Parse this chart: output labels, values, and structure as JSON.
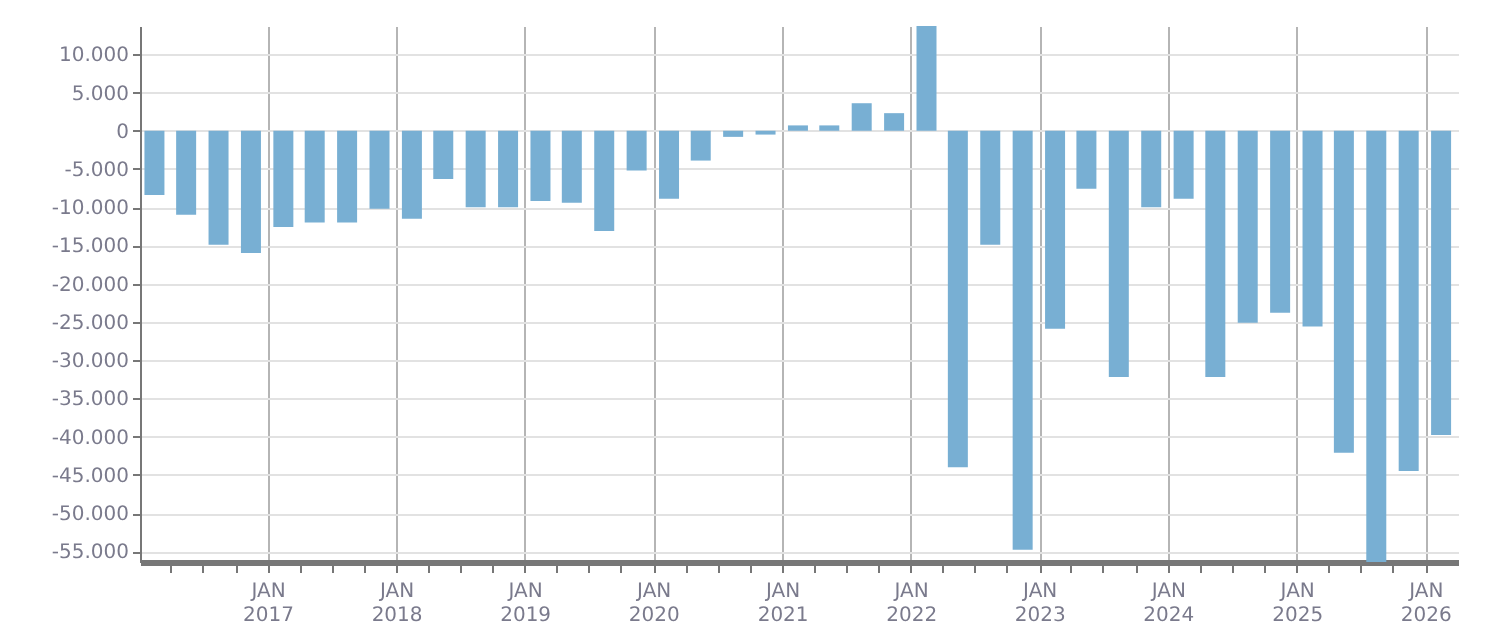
{
  "chart_data": {
    "type": "bar",
    "color": "#78afd3",
    "x": [
      "2016-02-15",
      "2016-05-15",
      "2016-08-15",
      "2016-11-15",
      "2017-02-15",
      "2017-05-15",
      "2017-08-15",
      "2017-11-15",
      "2018-02-15",
      "2018-05-15",
      "2018-08-15",
      "2018-11-15",
      "2019-02-15",
      "2019-05-15",
      "2019-08-15",
      "2019-11-15",
      "2020-02-15",
      "2020-05-15",
      "2020-08-15",
      "2020-11-15",
      "2021-02-15",
      "2021-05-15",
      "2021-08-15",
      "2021-11-15",
      "2022-02-15",
      "2022-05-15",
      "2022-08-15",
      "2022-11-15",
      "2023-02-15",
      "2023-05-15",
      "2023-08-15",
      "2023-11-15",
      "2024-02-15",
      "2024-05-15",
      "2024-08-15",
      "2024-11-15",
      "2025-02-15",
      "2025-05-15",
      "2025-08-15",
      "2025-11-15",
      "2026-02-15"
    ],
    "values": [
      -8400,
      -11000,
      -14900,
      -16000,
      -12600,
      -12000,
      -12000,
      -10200,
      -11500,
      -6300,
      -10000,
      -10000,
      -9200,
      -9400,
      -13100,
      -5200,
      -8900,
      -3900,
      -800,
      -500,
      700,
      700,
      3600,
      2300,
      13700,
      -44000,
      -14900,
      -54800,
      -25900,
      -7600,
      -32200,
      -10000,
      -8900,
      -32200,
      -25100,
      -23800,
      -25600,
      -42100,
      -56400,
      -44500,
      -39800
    ],
    "xlim": [
      "2016-01-05",
      "2026-04-04"
    ],
    "xticks": [
      {
        "value": "2016-04-01",
        "label": null
      },
      {
        "value": "2016-07-01",
        "label": null
      },
      {
        "value": "2016-10-01",
        "label": null
      },
      {
        "value": "2017-01-01",
        "label": "JAN 2017"
      },
      {
        "value": "2017-04-01",
        "label": null
      },
      {
        "value": "2017-07-01",
        "label": null
      },
      {
        "value": "2017-10-01",
        "label": null
      },
      {
        "value": "2018-01-01",
        "label": "JAN 2018"
      },
      {
        "value": "2018-04-01",
        "label": null
      },
      {
        "value": "2018-07-01",
        "label": null
      },
      {
        "value": "2018-10-01",
        "label": null
      },
      {
        "value": "2019-01-01",
        "label": "JAN 2019"
      },
      {
        "value": "2019-04-01",
        "label": null
      },
      {
        "value": "2019-07-01",
        "label": null
      },
      {
        "value": "2019-10-01",
        "label": null
      },
      {
        "value": "2020-01-01",
        "label": "JAN 2020"
      },
      {
        "value": "2020-04-01",
        "label": null
      },
      {
        "value": "2020-07-01",
        "label": null
      },
      {
        "value": "2020-10-01",
        "label": null
      },
      {
        "value": "2021-01-01",
        "label": "JAN 2021"
      },
      {
        "value": "2021-04-01",
        "label": null
      },
      {
        "value": "2021-07-01",
        "label": null
      },
      {
        "value": "2021-10-01",
        "label": null
      },
      {
        "value": "2022-01-01",
        "label": "JAN 2022"
      },
      {
        "value": "2022-04-01",
        "label": null
      },
      {
        "value": "2022-07-01",
        "label": null
      },
      {
        "value": "2022-10-01",
        "label": null
      },
      {
        "value": "2023-01-01",
        "label": "JAN 2023"
      },
      {
        "value": "2023-04-01",
        "label": null
      },
      {
        "value": "2023-07-01",
        "label": null
      },
      {
        "value": "2023-10-01",
        "label": null
      },
      {
        "value": "2024-01-01",
        "label": "JAN 2024"
      },
      {
        "value": "2024-04-01",
        "label": null
      },
      {
        "value": "2024-07-01",
        "label": null
      },
      {
        "value": "2024-10-01",
        "label": null
      },
      {
        "value": "2025-01-01",
        "label": "JAN 2025"
      },
      {
        "value": "2025-04-01",
        "label": null
      },
      {
        "value": "2025-07-01",
        "label": null
      },
      {
        "value": "2025-10-01",
        "label": null
      },
      {
        "value": "2026-01-01",
        "label": "JAN 2026"
      }
    ],
    "ylim": [
      -56400,
      13700
    ],
    "yticks": [
      {
        "value": 10000,
        "label": "10.000"
      },
      {
        "value": 5000,
        "label": "5.000"
      },
      0,
      {
        "value": -5000,
        "label": "-5.000"
      },
      {
        "value": -10000,
        "label": "-10.000"
      },
      {
        "value": -15000,
        "label": "-15.000"
      },
      {
        "value": -20000,
        "label": "-20.000"
      },
      {
        "value": -25000,
        "label": "-25.000"
      },
      {
        "value": -30000,
        "label": "-30.000"
      },
      {
        "value": -35000,
        "label": "-35.000"
      },
      {
        "value": -40000,
        "label": "-40.000"
      },
      {
        "value": -45000,
        "label": "-45.000"
      },
      {
        "value": -50000,
        "label": "-50.000"
      },
      {
        "value": -55000,
        "label": "-55.000"
      }
    ],
    "grid": true
  }
}
